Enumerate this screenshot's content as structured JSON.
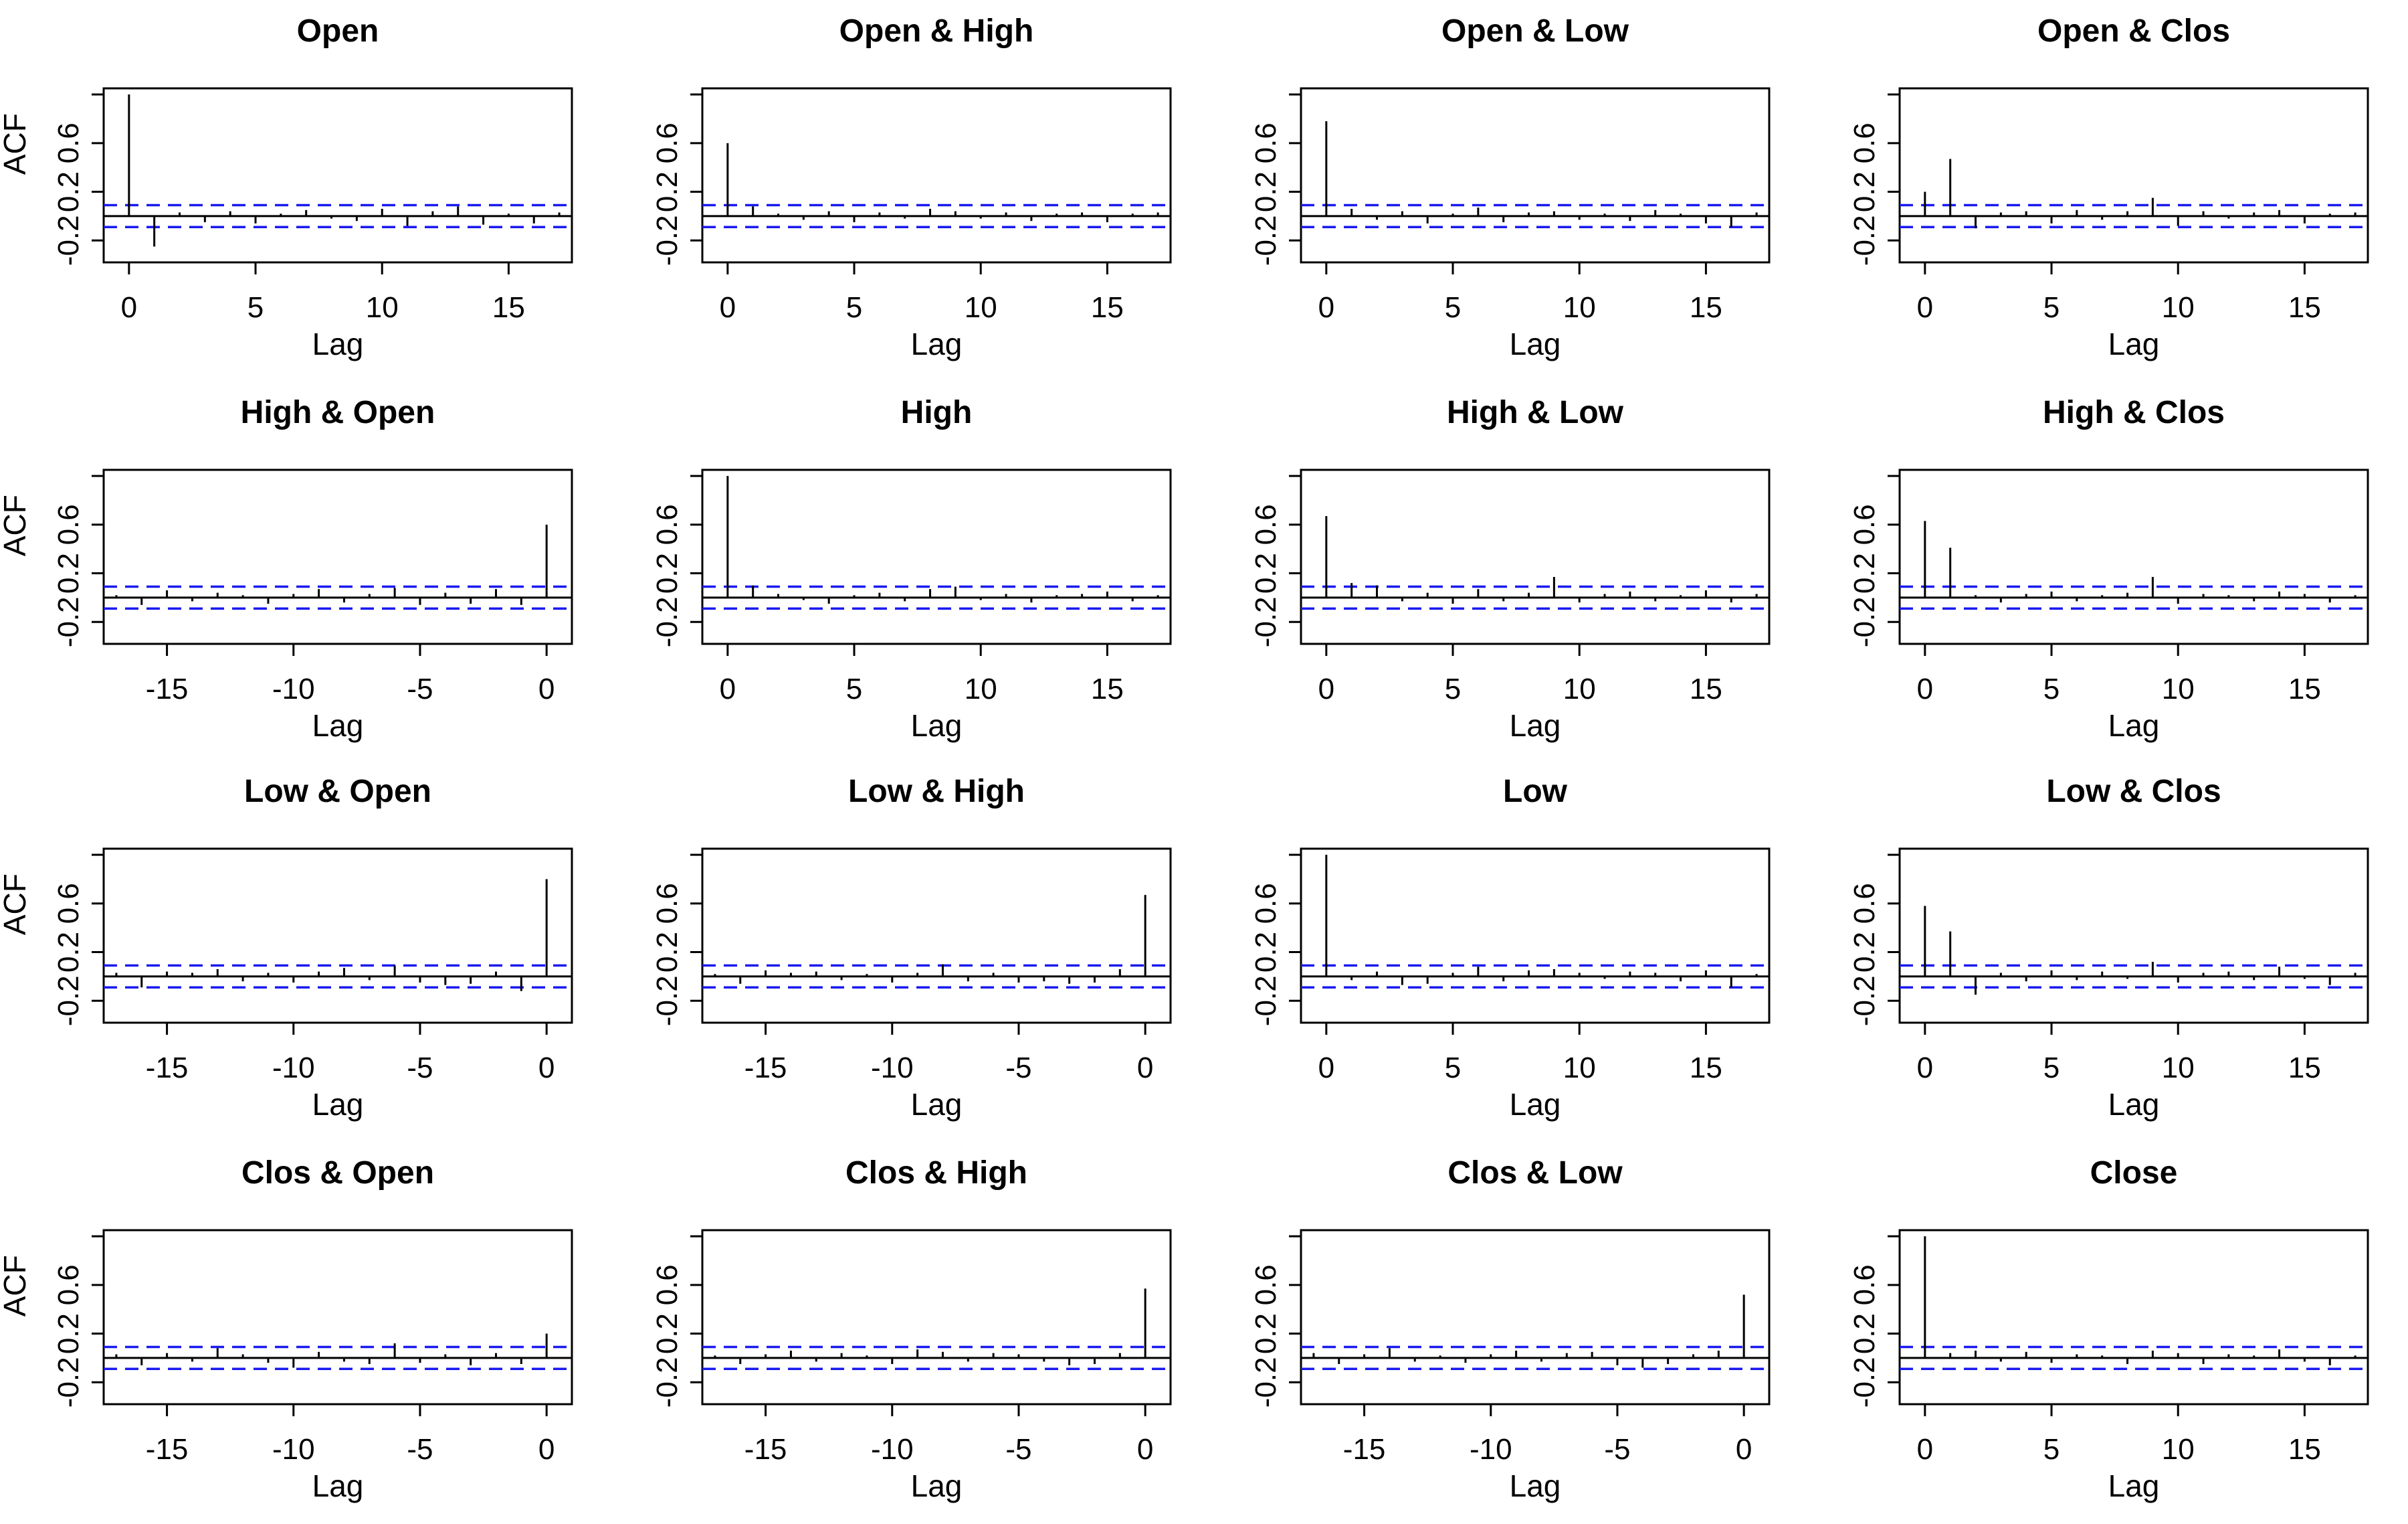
{
  "colors": {
    "ci": "#1a1af0",
    "bar": "#000000",
    "frame": "#000000"
  },
  "chart_data": [
    {
      "type": "bar",
      "title": "Open",
      "xlabel": "Lag",
      "ylabel": "ACF",
      "xlim": [
        -1,
        17.5
      ],
      "ylim": [
        -0.38,
        1.05
      ],
      "xticks": [
        "0",
        "5",
        "10",
        "15"
      ],
      "yticks": [
        "-0.2",
        "0.2",
        "0.6"
      ],
      "ci": 0.09,
      "x": [
        0,
        1,
        2,
        3,
        4,
        5,
        6,
        7,
        8,
        9,
        10,
        11,
        12,
        13,
        14,
        15,
        16,
        17
      ],
      "values": [
        1.0,
        -0.25,
        0.03,
        -0.05,
        0.04,
        -0.06,
        0.02,
        0.05,
        -0.02,
        -0.04,
        0.06,
        -0.08,
        0.04,
        0.08,
        -0.07,
        0.02,
        -0.06,
        0.03
      ]
    },
    {
      "type": "bar",
      "title": "Open & High",
      "xlabel": "Lag",
      "ylabel": "",
      "xlim": [
        -1,
        17.5
      ],
      "ylim": [
        -0.38,
        1.05
      ],
      "xticks": [
        "0",
        "5",
        "10",
        "15"
      ],
      "yticks": [
        "-0.2",
        "0.2",
        "0.6"
      ],
      "ci": 0.09,
      "x": [
        0,
        1,
        2,
        3,
        4,
        5,
        6,
        7,
        8,
        9,
        10,
        11,
        12,
        13,
        14,
        15,
        16,
        17
      ],
      "values": [
        0.6,
        0.08,
        0.02,
        -0.03,
        0.04,
        -0.05,
        0.03,
        -0.02,
        0.06,
        0.04,
        -0.02,
        0.03,
        -0.04,
        0.02,
        0.03,
        -0.05,
        0.02,
        0.03
      ]
    },
    {
      "type": "bar",
      "title": "Open & Low",
      "xlabel": "Lag",
      "ylabel": "",
      "xlim": [
        -1,
        17.5
      ],
      "ylim": [
        -0.38,
        1.05
      ],
      "xticks": [
        "0",
        "5",
        "10",
        "15"
      ],
      "yticks": [
        "-0.2",
        "0.2",
        "0.6"
      ],
      "ci": 0.09,
      "x": [
        0,
        1,
        2,
        3,
        4,
        5,
        6,
        7,
        8,
        9,
        10,
        11,
        12,
        13,
        14,
        15,
        16,
        17
      ],
      "values": [
        0.78,
        0.06,
        -0.03,
        0.04,
        -0.06,
        0.02,
        0.07,
        -0.05,
        0.03,
        0.04,
        -0.03,
        0.02,
        -0.04,
        0.05,
        0.02,
        -0.06,
        -0.09,
        0.03
      ]
    },
    {
      "type": "bar",
      "title": "Open & Clos",
      "xlabel": "Lag",
      "ylabel": "",
      "xlim": [
        -1,
        17.5
      ],
      "ylim": [
        -0.38,
        1.05
      ],
      "xticks": [
        "0",
        "5",
        "10",
        "15"
      ],
      "yticks": [
        "-0.2",
        "0.2",
        "0.6"
      ],
      "ci": 0.09,
      "x": [
        0,
        1,
        2,
        3,
        4,
        5,
        6,
        7,
        8,
        9,
        10,
        11,
        12,
        13,
        14,
        15,
        16,
        17
      ],
      "values": [
        0.2,
        0.47,
        -0.1,
        0.03,
        0.04,
        -0.06,
        0.05,
        -0.03,
        0.04,
        0.15,
        -0.08,
        0.04,
        -0.02,
        0.03,
        0.05,
        -0.06,
        0.02,
        0.03
      ]
    },
    {
      "type": "bar",
      "title": "High & Open",
      "xlabel": "Lag",
      "ylabel": "ACF",
      "xlim": [
        -17.5,
        1
      ],
      "ylim": [
        -0.38,
        1.05
      ],
      "xticks": [
        "-15",
        "-10",
        "-5",
        "0"
      ],
      "yticks": [
        "-0.2",
        "0.2",
        "0.6"
      ],
      "ci": 0.09,
      "x": [
        -17,
        -16,
        -15,
        -14,
        -13,
        -12,
        -11,
        -10,
        -9,
        -8,
        -7,
        -6,
        -5,
        -4,
        -3,
        -2,
        -1,
        0
      ],
      "values": [
        0.02,
        -0.06,
        0.06,
        -0.03,
        0.04,
        0.02,
        -0.05,
        0.03,
        0.07,
        -0.04,
        0.03,
        0.08,
        -0.06,
        0.04,
        -0.05,
        0.07,
        -0.06,
        0.6
      ]
    },
    {
      "type": "bar",
      "title": "High",
      "xlabel": "Lag",
      "ylabel": "",
      "xlim": [
        -1,
        17.5
      ],
      "ylim": [
        -0.38,
        1.05
      ],
      "xticks": [
        "0",
        "5",
        "10",
        "15"
      ],
      "yticks": [
        "-0.2",
        "0.2",
        "0.6"
      ],
      "ci": 0.09,
      "x": [
        0,
        1,
        2,
        3,
        4,
        5,
        6,
        7,
        8,
        9,
        10,
        11,
        12,
        13,
        14,
        15,
        16,
        17
      ],
      "values": [
        1.0,
        0.1,
        0.03,
        -0.02,
        -0.05,
        0.02,
        0.04,
        -0.03,
        0.07,
        0.09,
        -0.02,
        0.03,
        -0.04,
        0.02,
        0.03,
        0.05,
        -0.03,
        0.02
      ]
    },
    {
      "type": "bar",
      "title": "High & Low",
      "xlabel": "Lag",
      "ylabel": "",
      "xlim": [
        -1,
        17.5
      ],
      "ylim": [
        -0.38,
        1.05
      ],
      "xticks": [
        "0",
        "5",
        "10",
        "15"
      ],
      "yticks": [
        "-0.2",
        "0.2",
        "0.6"
      ],
      "ci": 0.09,
      "x": [
        0,
        1,
        2,
        3,
        4,
        5,
        6,
        7,
        8,
        9,
        10,
        11,
        12,
        13,
        14,
        15,
        16,
        17
      ],
      "values": [
        0.67,
        0.12,
        0.1,
        -0.03,
        0.04,
        -0.05,
        0.07,
        -0.03,
        0.04,
        0.17,
        -0.04,
        0.03,
        0.05,
        -0.03,
        0.02,
        0.06,
        -0.04,
        0.03
      ]
    },
    {
      "type": "bar",
      "title": "High & Clos",
      "xlabel": "Lag",
      "ylabel": "",
      "xlim": [
        -1,
        17.5
      ],
      "ylim": [
        -0.38,
        1.05
      ],
      "xticks": [
        "0",
        "5",
        "10",
        "15"
      ],
      "yticks": [
        "-0.2",
        "0.2",
        "0.6"
      ],
      "ci": 0.09,
      "x": [
        0,
        1,
        2,
        3,
        4,
        5,
        6,
        7,
        8,
        9,
        10,
        11,
        12,
        13,
        14,
        15,
        16,
        17
      ],
      "values": [
        0.63,
        0.41,
        0.02,
        -0.04,
        0.03,
        0.05,
        -0.03,
        0.02,
        0.04,
        0.17,
        -0.05,
        0.03,
        0.02,
        -0.03,
        0.05,
        0.03,
        -0.04,
        0.02
      ]
    },
    {
      "type": "bar",
      "title": "Low & Open",
      "xlabel": "Lag",
      "ylabel": "ACF",
      "xlim": [
        -17.5,
        1
      ],
      "ylim": [
        -0.38,
        1.05
      ],
      "xticks": [
        "-15",
        "-10",
        "-5",
        "0"
      ],
      "yticks": [
        "-0.2",
        "0.2",
        "0.6"
      ],
      "ci": 0.09,
      "x": [
        -17,
        -16,
        -15,
        -14,
        -13,
        -12,
        -11,
        -10,
        -9,
        -8,
        -7,
        -6,
        -5,
        -4,
        -3,
        -2,
        -1,
        0
      ],
      "values": [
        0.03,
        -0.09,
        0.04,
        0.03,
        0.06,
        -0.04,
        0.03,
        -0.05,
        0.04,
        0.07,
        -0.03,
        0.09,
        -0.05,
        -0.07,
        -0.06,
        0.04,
        -0.12,
        0.8
      ]
    },
    {
      "type": "bar",
      "title": "Low & High",
      "xlabel": "Lag",
      "ylabel": "",
      "xlim": [
        -17.5,
        1
      ],
      "ylim": [
        -0.38,
        1.05
      ],
      "xticks": [
        "-15",
        "-10",
        "-5",
        "0"
      ],
      "yticks": [
        "-0.2",
        "0.2",
        "0.6"
      ],
      "ci": 0.09,
      "x": [
        -17,
        -16,
        -15,
        -14,
        -13,
        -12,
        -11,
        -10,
        -9,
        -8,
        -7,
        -6,
        -5,
        -4,
        -3,
        -2,
        -1,
        0
      ],
      "values": [
        0.02,
        -0.06,
        0.05,
        0.03,
        0.04,
        -0.03,
        0.02,
        -0.05,
        0.03,
        0.1,
        -0.04,
        0.03,
        -0.05,
        -0.04,
        -0.06,
        -0.05,
        0.06,
        0.67
      ]
    },
    {
      "type": "bar",
      "title": "Low",
      "xlabel": "Lag",
      "ylabel": "",
      "xlim": [
        -1,
        17.5
      ],
      "ylim": [
        -0.38,
        1.05
      ],
      "xticks": [
        "0",
        "5",
        "10",
        "15"
      ],
      "yticks": [
        "-0.2",
        "0.2",
        "0.6"
      ],
      "ci": 0.09,
      "x": [
        0,
        1,
        2,
        3,
        4,
        5,
        6,
        7,
        8,
        9,
        10,
        11,
        12,
        13,
        14,
        15,
        16,
        17
      ],
      "values": [
        1.0,
        -0.03,
        0.04,
        -0.07,
        -0.06,
        0.03,
        0.08,
        -0.04,
        0.05,
        0.06,
        0.03,
        -0.02,
        0.04,
        0.03,
        -0.04,
        0.05,
        -0.09,
        0.02
      ]
    },
    {
      "type": "bar",
      "title": "Low & Clos",
      "xlabel": "Lag",
      "ylabel": "",
      "xlim": [
        -1,
        17.5
      ],
      "ylim": [
        -0.38,
        1.05
      ],
      "xticks": [
        "0",
        "5",
        "10",
        "15"
      ],
      "yticks": [
        "-0.2",
        "0.2",
        "0.6"
      ],
      "ci": 0.09,
      "x": [
        0,
        1,
        2,
        3,
        4,
        5,
        6,
        7,
        8,
        9,
        10,
        11,
        12,
        13,
        14,
        15,
        16,
        17
      ],
      "values": [
        0.58,
        0.37,
        -0.15,
        0.03,
        -0.04,
        0.05,
        -0.03,
        0.04,
        -0.02,
        0.12,
        -0.05,
        0.03,
        0.04,
        -0.03,
        0.08,
        -0.02,
        -0.07,
        0.03
      ]
    },
    {
      "type": "bar",
      "title": "Clos & Open",
      "xlabel": "Lag",
      "ylabel": "ACF",
      "xlim": [
        -17.5,
        1
      ],
      "ylim": [
        -0.38,
        1.05
      ],
      "xticks": [
        "-15",
        "-10",
        "-5",
        "0"
      ],
      "yticks": [
        "-0.2",
        "0.2",
        "0.6"
      ],
      "ci": 0.09,
      "x": [
        -17,
        -16,
        -15,
        -14,
        -13,
        -12,
        -11,
        -10,
        -9,
        -8,
        -7,
        -6,
        -5,
        -4,
        -3,
        -2,
        -1,
        0
      ],
      "values": [
        0.03,
        -0.06,
        0.04,
        -0.03,
        0.08,
        0.03,
        -0.04,
        -0.08,
        0.05,
        -0.03,
        -0.05,
        0.12,
        -0.04,
        0.03,
        -0.06,
        0.04,
        -0.05,
        0.2
      ]
    },
    {
      "type": "bar",
      "title": "Clos & High",
      "xlabel": "Lag",
      "ylabel": "",
      "xlim": [
        -17.5,
        1
      ],
      "ylim": [
        -0.38,
        1.05
      ],
      "xticks": [
        "-15",
        "-10",
        "-5",
        "0"
      ],
      "yticks": [
        "-0.2",
        "0.2",
        "0.6"
      ],
      "ci": 0.09,
      "x": [
        -17,
        -16,
        -15,
        -14,
        -13,
        -12,
        -11,
        -10,
        -9,
        -8,
        -7,
        -6,
        -5,
        -4,
        -3,
        -2,
        -1,
        0
      ],
      "values": [
        0.02,
        -0.05,
        0.03,
        0.06,
        -0.03,
        0.04,
        0.02,
        -0.05,
        0.07,
        0.05,
        -0.03,
        0.04,
        0.03,
        -0.03,
        -0.06,
        -0.05,
        0.04,
        0.57
      ]
    },
    {
      "type": "bar",
      "title": "Clos & Low",
      "xlabel": "Lag",
      "ylabel": "",
      "xlim": [
        -17.5,
        1
      ],
      "ylim": [
        -0.38,
        1.05
      ],
      "xticks": [
        "-15",
        "-10",
        "-5",
        "0"
      ],
      "yticks": [
        "-0.2",
        "0.2",
        "0.6"
      ],
      "ci": 0.09,
      "x": [
        -17,
        -16,
        -15,
        -14,
        -13,
        -12,
        -11,
        -10,
        -9,
        -8,
        -7,
        -6,
        -5,
        -4,
        -3,
        -2,
        -1,
        0
      ],
      "values": [
        0.04,
        -0.05,
        0.03,
        0.08,
        -0.03,
        0.02,
        -0.04,
        0.03,
        0.06,
        -0.03,
        0.04,
        0.05,
        -0.06,
        -0.08,
        -0.05,
        0.03,
        0.06,
        0.52
      ]
    },
    {
      "type": "bar",
      "title": "Close",
      "xlabel": "Lag",
      "ylabel": "",
      "xlim": [
        -1,
        17.5
      ],
      "ylim": [
        -0.38,
        1.05
      ],
      "xticks": [
        "0",
        "5",
        "10",
        "15"
      ],
      "yticks": [
        "-0.2",
        "0.2",
        "0.6"
      ],
      "ci": 0.09,
      "x": [
        0,
        1,
        2,
        3,
        4,
        5,
        6,
        7,
        8,
        9,
        10,
        11,
        12,
        13,
        14,
        15,
        16,
        17
      ],
      "values": [
        1.0,
        0.04,
        0.06,
        -0.03,
        0.05,
        -0.04,
        0.03,
        0.02,
        -0.05,
        0.06,
        0.04,
        -0.05,
        0.03,
        0.02,
        0.07,
        -0.03,
        -0.06,
        0.02
      ]
    }
  ]
}
